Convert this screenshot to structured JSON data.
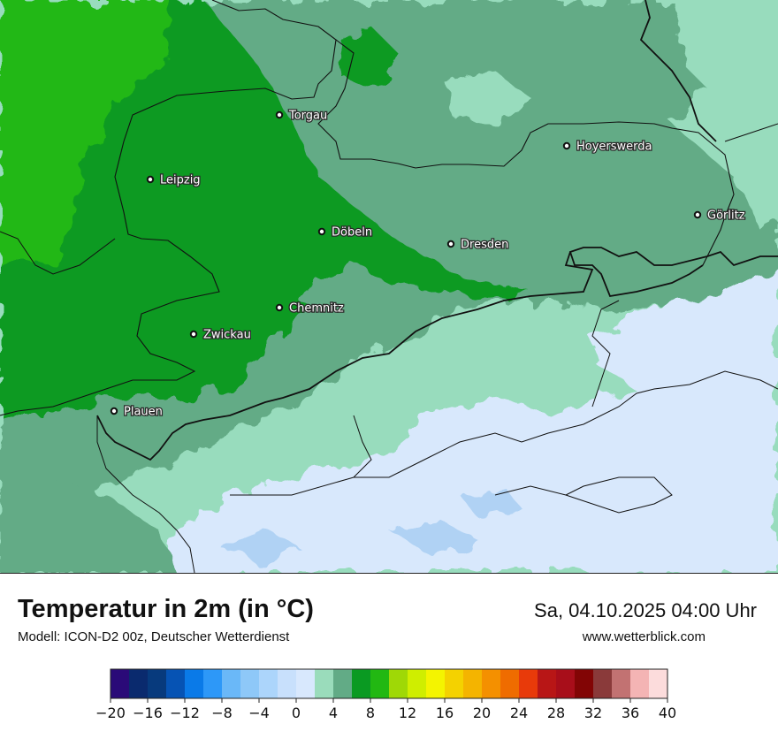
{
  "map": {
    "cities": [
      {
        "name": "Torgau"
      },
      {
        "name": "Hoyerswerda"
      },
      {
        "name": "Leipzig"
      },
      {
        "name": "Görlitz"
      },
      {
        "name": "Döbeln"
      },
      {
        "name": "Dresden"
      },
      {
        "name": "Chemnitz"
      },
      {
        "name": "Zwickau"
      },
      {
        "name": "Plauen"
      }
    ],
    "colors": {
      "light_green": "#22b812",
      "green": "#0a9a22",
      "dark_sea_green": "#63ab86",
      "mint": "#98dcbd",
      "pale_blue": "#d8e8fc",
      "blue": "#b0d2f4"
    }
  },
  "footer": {
    "title": "Temperatur in 2m (in °C)",
    "model": "Modell: ICON-D2 00z, Deutscher Wetterdienst",
    "datetime": "Sa, 04.10.2025 04:00 Uhr",
    "website": "www.wetterblick.com"
  },
  "legend": {
    "colors": [
      "#2a0a78",
      "#0a2a6e",
      "#073a7d",
      "#0653b4",
      "#0a7ae8",
      "#2d98f8",
      "#6ab8f8",
      "#8ec8f8",
      "#acd5fb",
      "#c8e0fc",
      "#d8e8fd",
      "#9adcbb",
      "#62ab86",
      "#0a9a22",
      "#22b812",
      "#9fd806",
      "#cfee00",
      "#f4f400",
      "#f4d200",
      "#f4b400",
      "#f49000",
      "#ef6c00",
      "#e83a0a",
      "#b81616",
      "#a80e1a",
      "#820505",
      "#8a3a3a",
      "#c27272",
      "#f4b4b4",
      "#fcdcdc"
    ],
    "ticks": [
      "−20",
      "−16",
      "−12",
      "−8",
      "−4",
      "0",
      "4",
      "8",
      "12",
      "16",
      "20",
      "24",
      "28",
      "32",
      "36",
      "40"
    ]
  }
}
